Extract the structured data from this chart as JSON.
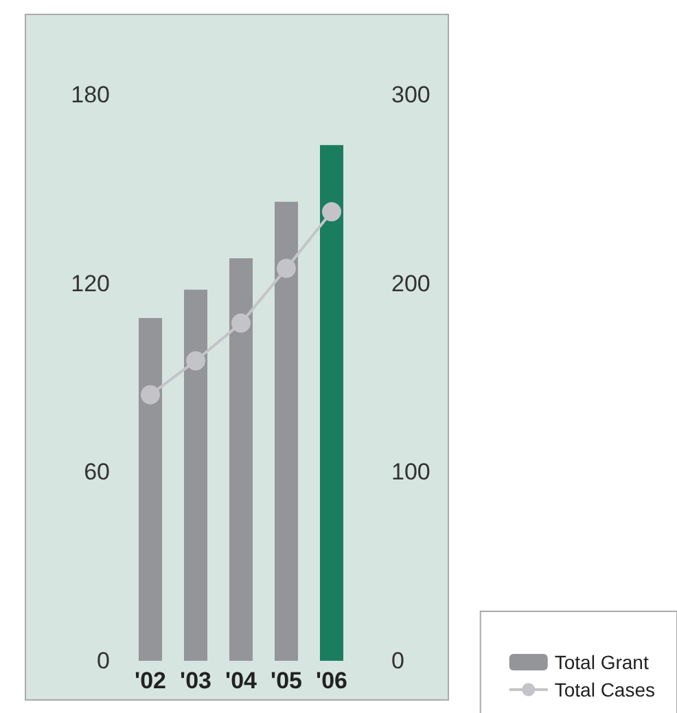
{
  "chart_data": {
    "type": "bar",
    "categories": [
      "'02",
      "'03",
      "'04",
      "'05",
      "'06"
    ],
    "series": [
      {
        "name": "Total Grant",
        "color": "#939598",
        "colors": [
          "#939598",
          "#939598",
          "#939598",
          "#939598",
          "#1a7d5e"
        ],
        "values": [
          109,
          118,
          128,
          146,
          164
        ]
      },
      {
        "name": "Total Cases",
        "type": "line",
        "axis": "y2",
        "color": "#c4c4c8",
        "values": [
          141,
          159,
          179,
          208,
          238
        ]
      }
    ],
    "ylim": [
      0,
      180
    ],
    "yticks": [
      0,
      60,
      120,
      180
    ],
    "y2lim": [
      0,
      300
    ],
    "y2ticks": [
      0,
      100,
      200,
      300
    ],
    "grid": false,
    "legend": "bottom right",
    "marker": "circle",
    "line_style": "solid"
  }
}
